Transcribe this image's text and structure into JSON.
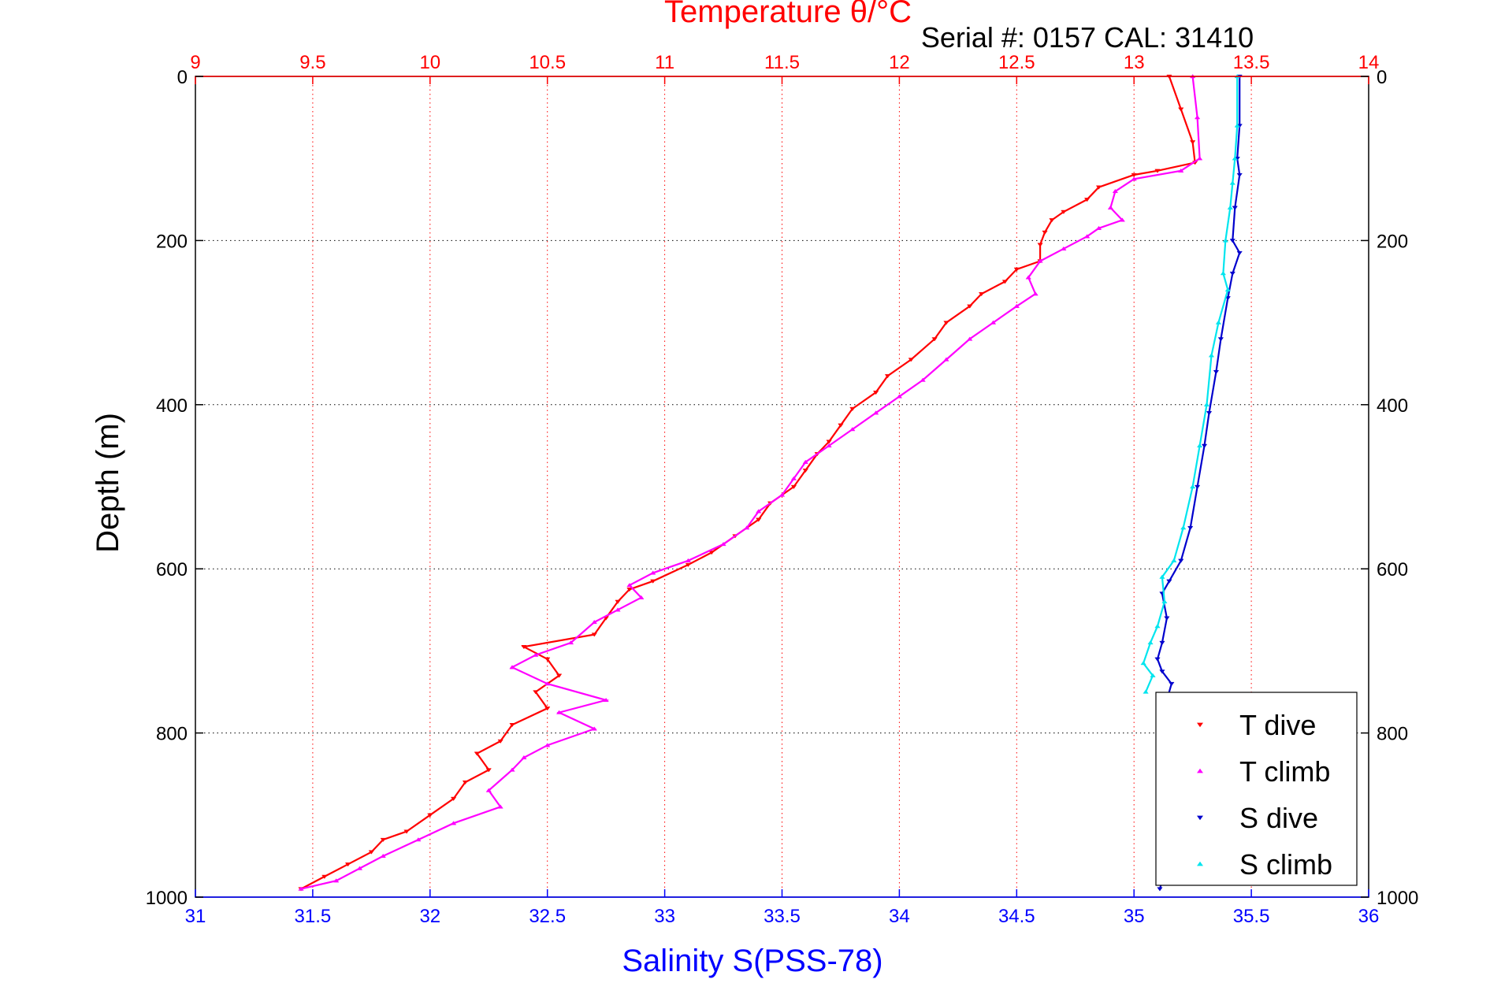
{
  "chart_data": {
    "type": "scatter",
    "title": "Temperature θ/°C",
    "subtitle": "Serial #: 0157  CAL: 31410",
    "ylabel": "Depth (m)",
    "xlabel": "Salinity S(PSS-78)",
    "top_axis": {
      "label": "Temperature θ/°C",
      "lim": [
        9,
        14
      ],
      "ticks": [
        "9",
        "9.5",
        "10",
        "10.5",
        "11",
        "11.5",
        "12",
        "12.5",
        "13",
        "13.5",
        "14"
      ]
    },
    "bottom_axis": {
      "label": "Salinity S(PSS-78)",
      "lim": [
        31,
        36
      ],
      "ticks": [
        "31",
        "31.5",
        "32",
        "32.5",
        "33",
        "33.5",
        "34",
        "34.5",
        "35",
        "35.5",
        "36"
      ]
    },
    "y_axis": {
      "lim": [
        0,
        1000
      ],
      "reversed": true,
      "ticks": [
        "0",
        "200",
        "400",
        "600",
        "800",
        "1000"
      ]
    },
    "grid": true,
    "legend_position": "bottom-right",
    "colors": {
      "temp_axis": "#ff0000",
      "sal_axis": "#0000ff"
    },
    "series": [
      {
        "name": "T dive",
        "axis": "temperature",
        "color": "#ff0000",
        "marker": "triangle-down",
        "points": [
          [
            13.15,
            0
          ],
          [
            13.2,
            40
          ],
          [
            13.25,
            80
          ],
          [
            13.26,
            105
          ],
          [
            13.1,
            115
          ],
          [
            13.0,
            120
          ],
          [
            12.85,
            135
          ],
          [
            12.8,
            150
          ],
          [
            12.7,
            165
          ],
          [
            12.65,
            175
          ],
          [
            12.62,
            190
          ],
          [
            12.6,
            205
          ],
          [
            12.6,
            225
          ],
          [
            12.5,
            235
          ],
          [
            12.45,
            250
          ],
          [
            12.35,
            265
          ],
          [
            12.3,
            280
          ],
          [
            12.2,
            300
          ],
          [
            12.15,
            320
          ],
          [
            12.05,
            345
          ],
          [
            11.95,
            365
          ],
          [
            11.9,
            385
          ],
          [
            11.8,
            405
          ],
          [
            11.75,
            425
          ],
          [
            11.7,
            445
          ],
          [
            11.65,
            460
          ],
          [
            11.6,
            480
          ],
          [
            11.55,
            500
          ],
          [
            11.45,
            520
          ],
          [
            11.4,
            540
          ],
          [
            11.3,
            560
          ],
          [
            11.2,
            580
          ],
          [
            11.1,
            595
          ],
          [
            10.95,
            615
          ],
          [
            10.85,
            625
          ],
          [
            10.8,
            640
          ],
          [
            10.75,
            660
          ],
          [
            10.7,
            680
          ],
          [
            10.4,
            695
          ],
          [
            10.5,
            710
          ],
          [
            10.55,
            730
          ],
          [
            10.45,
            750
          ],
          [
            10.5,
            770
          ],
          [
            10.35,
            790
          ],
          [
            10.3,
            810
          ],
          [
            10.2,
            825
          ],
          [
            10.25,
            845
          ],
          [
            10.15,
            860
          ],
          [
            10.1,
            880
          ],
          [
            10.0,
            900
          ],
          [
            9.9,
            920
          ],
          [
            9.8,
            930
          ],
          [
            9.75,
            945
          ],
          [
            9.65,
            960
          ],
          [
            9.55,
            975
          ],
          [
            9.45,
            990
          ]
        ]
      },
      {
        "name": "T climb",
        "axis": "temperature",
        "color": "#ff00ff",
        "marker": "triangle-up",
        "points": [
          [
            13.25,
            0
          ],
          [
            13.27,
            50
          ],
          [
            13.28,
            100
          ],
          [
            13.2,
            115
          ],
          [
            13.0,
            125
          ],
          [
            12.92,
            140
          ],
          [
            12.9,
            160
          ],
          [
            12.95,
            175
          ],
          [
            12.85,
            185
          ],
          [
            12.8,
            195
          ],
          [
            12.7,
            210
          ],
          [
            12.6,
            225
          ],
          [
            12.55,
            245
          ],
          [
            12.58,
            265
          ],
          [
            12.5,
            280
          ],
          [
            12.4,
            300
          ],
          [
            12.3,
            320
          ],
          [
            12.2,
            345
          ],
          [
            12.1,
            370
          ],
          [
            12.0,
            390
          ],
          [
            11.9,
            410
          ],
          [
            11.8,
            430
          ],
          [
            11.7,
            450
          ],
          [
            11.6,
            470
          ],
          [
            11.55,
            490
          ],
          [
            11.5,
            510
          ],
          [
            11.4,
            530
          ],
          [
            11.35,
            550
          ],
          [
            11.25,
            570
          ],
          [
            11.1,
            590
          ],
          [
            10.95,
            605
          ],
          [
            10.85,
            620
          ],
          [
            10.9,
            635
          ],
          [
            10.8,
            650
          ],
          [
            10.7,
            665
          ],
          [
            10.6,
            690
          ],
          [
            10.45,
            705
          ],
          [
            10.35,
            720
          ],
          [
            10.5,
            740
          ],
          [
            10.75,
            760
          ],
          [
            10.55,
            775
          ],
          [
            10.7,
            795
          ],
          [
            10.5,
            815
          ],
          [
            10.4,
            830
          ],
          [
            10.35,
            845
          ],
          [
            10.25,
            870
          ],
          [
            10.3,
            890
          ],
          [
            10.1,
            910
          ],
          [
            9.95,
            930
          ],
          [
            9.8,
            950
          ],
          [
            9.7,
            965
          ],
          [
            9.6,
            980
          ],
          [
            9.45,
            990
          ]
        ]
      },
      {
        "name": "S dive",
        "axis": "salinity",
        "color": "#0000cd",
        "marker": "triangle-down",
        "points": [
          [
            35.45,
            0
          ],
          [
            35.45,
            60
          ],
          [
            35.44,
            100
          ],
          [
            35.45,
            120
          ],
          [
            35.43,
            160
          ],
          [
            35.42,
            200
          ],
          [
            35.45,
            215
          ],
          [
            35.42,
            240
          ],
          [
            35.4,
            270
          ],
          [
            35.37,
            320
          ],
          [
            35.35,
            360
          ],
          [
            35.32,
            410
          ],
          [
            35.3,
            450
          ],
          [
            35.27,
            500
          ],
          [
            35.24,
            550
          ],
          [
            35.2,
            590
          ],
          [
            35.15,
            615
          ],
          [
            35.12,
            630
          ],
          [
            35.14,
            660
          ],
          [
            35.12,
            690
          ],
          [
            35.1,
            710
          ],
          [
            35.12,
            725
          ],
          [
            35.16,
            740
          ],
          [
            35.14,
            760
          ],
          [
            35.13,
            800
          ],
          [
            35.14,
            850
          ],
          [
            35.12,
            900
          ],
          [
            35.11,
            950
          ],
          [
            35.12,
            980
          ],
          [
            35.11,
            990
          ]
        ]
      },
      {
        "name": "S climb",
        "axis": "salinity",
        "color": "#00e5ee",
        "marker": "triangle-up",
        "points": [
          [
            35.44,
            0
          ],
          [
            35.44,
            60
          ],
          [
            35.43,
            100
          ],
          [
            35.42,
            130
          ],
          [
            35.41,
            160
          ],
          [
            35.39,
            200
          ],
          [
            35.38,
            240
          ],
          [
            35.4,
            260
          ],
          [
            35.36,
            300
          ],
          [
            35.33,
            340
          ],
          [
            35.31,
            400
          ],
          [
            35.28,
            450
          ],
          [
            35.25,
            500
          ],
          [
            35.21,
            550
          ],
          [
            35.17,
            590
          ],
          [
            35.12,
            610
          ],
          [
            35.13,
            640
          ],
          [
            35.1,
            670
          ],
          [
            35.07,
            690
          ],
          [
            35.04,
            715
          ],
          [
            35.08,
            730
          ],
          [
            35.05,
            750
          ]
        ]
      }
    ]
  }
}
